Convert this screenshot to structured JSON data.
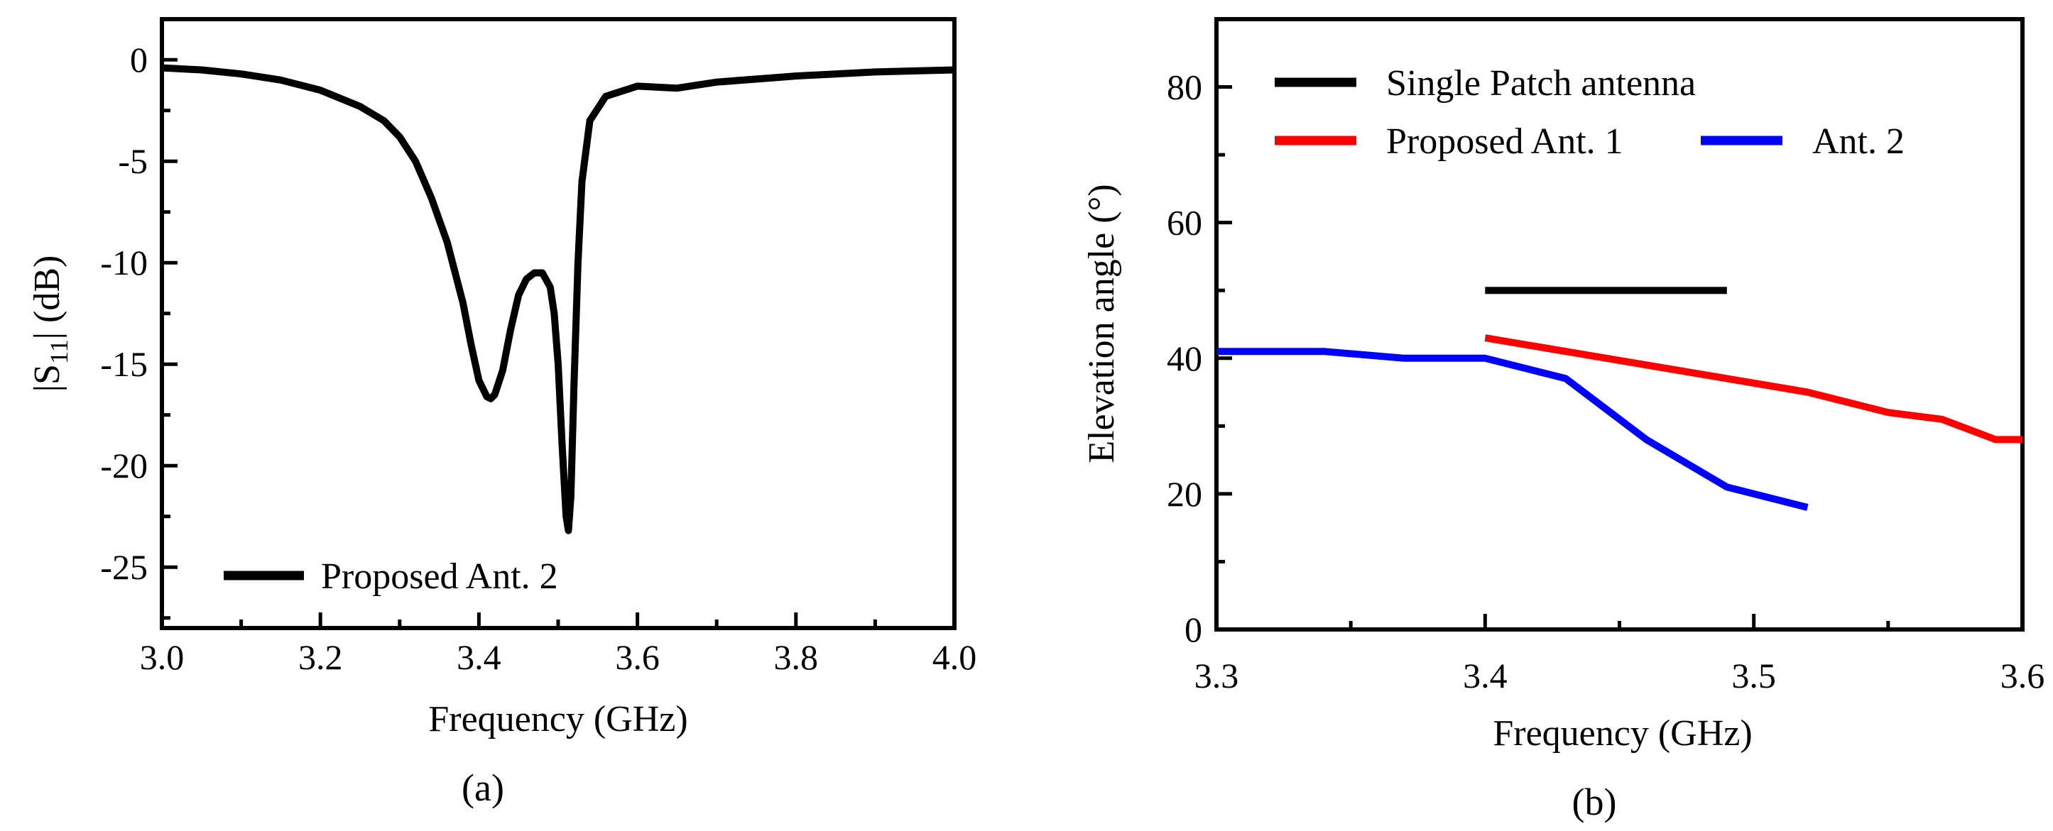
{
  "chart_data": [
    {
      "type": "line",
      "caption": "(a)",
      "xlabel": "Frequency (GHz)",
      "ylabel_parts": [
        "|S",
        "11",
        "| (dB)"
      ],
      "xlim": [
        3.0,
        4.0
      ],
      "ylim": [
        -28,
        2
      ],
      "xticks": [
        3.0,
        3.2,
        3.4,
        3.6,
        3.8,
        4.0
      ],
      "xtick_labels": [
        "3.0",
        "3.2",
        "3.4",
        "3.6",
        "3.8",
        "4.0"
      ],
      "yticks": [
        0,
        -5,
        -10,
        -15,
        -20,
        -25
      ],
      "ytick_labels": [
        "0",
        "-5",
        "-10",
        "-15",
        "-20",
        "-25"
      ],
      "legend_position": "bottom-left",
      "series": [
        {
          "name": "Proposed Ant. 2",
          "color": "#000000",
          "x": [
            3.0,
            3.05,
            3.1,
            3.15,
            3.2,
            3.25,
            3.28,
            3.3,
            3.32,
            3.34,
            3.36,
            3.38,
            3.39,
            3.4,
            3.41,
            3.415,
            3.42,
            3.43,
            3.44,
            3.45,
            3.46,
            3.47,
            3.48,
            3.49,
            3.495,
            3.5,
            3.505,
            3.51,
            3.513,
            3.516,
            3.52,
            3.525,
            3.53,
            3.54,
            3.56,
            3.6,
            3.65,
            3.7,
            3.8,
            3.9,
            4.0
          ],
          "y": [
            -0.4,
            -0.5,
            -0.7,
            -1.0,
            -1.5,
            -2.3,
            -3.0,
            -3.8,
            -5.0,
            -6.8,
            -9.0,
            -12.0,
            -14.0,
            -15.8,
            -16.6,
            -16.7,
            -16.5,
            -15.3,
            -13.3,
            -11.6,
            -10.8,
            -10.5,
            -10.5,
            -11.2,
            -12.5,
            -15.0,
            -19.0,
            -22.5,
            -23.2,
            -21.5,
            -16.0,
            -10.0,
            -6.0,
            -3.0,
            -1.8,
            -1.3,
            -1.4,
            -1.1,
            -0.8,
            -0.6,
            -0.5
          ]
        }
      ]
    },
    {
      "type": "line",
      "caption": "(b)",
      "xlabel": "Frequency (GHz)",
      "ylabel": "Elevation angle (°)",
      "xlim": [
        3.3,
        3.6
      ],
      "ylim": [
        0,
        90
      ],
      "xticks": [
        3.3,
        3.4,
        3.5,
        3.6
      ],
      "xtick_labels": [
        "3.3",
        "3.4",
        "3.5",
        "3.6"
      ],
      "yticks": [
        0,
        20,
        40,
        60,
        80
      ],
      "ytick_labels": [
        "0",
        "20",
        "40",
        "60",
        "80"
      ],
      "legend_position": "top-left",
      "series": [
        {
          "name": "Single Patch antenna",
          "color": "#000000",
          "x": [
            3.4,
            3.49
          ],
          "y": [
            50,
            50
          ]
        },
        {
          "name": "Proposed Ant. 1",
          "color": "#ff0000",
          "x": [
            3.4,
            3.43,
            3.46,
            3.49,
            3.52,
            3.55,
            3.57,
            3.59,
            3.6
          ],
          "y": [
            43,
            41,
            39,
            37,
            35,
            32,
            31,
            28,
            28
          ]
        },
        {
          "name": "Ant. 2",
          "color": "#0000ff",
          "x": [
            3.3,
            3.34,
            3.37,
            3.4,
            3.43,
            3.46,
            3.49,
            3.52
          ],
          "y": [
            41,
            41,
            40,
            40,
            37,
            28,
            21,
            18
          ]
        }
      ]
    }
  ]
}
